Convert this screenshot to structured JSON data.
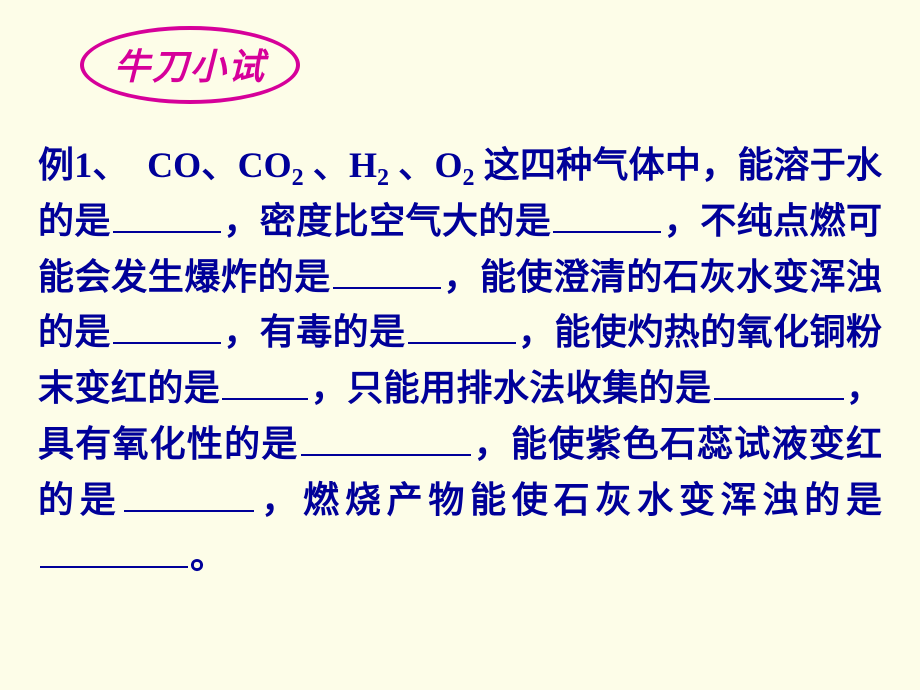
{
  "colors": {
    "slide_bg": "#fdfde8",
    "badge_text": "#d6009a",
    "badge_border": "#d6009a",
    "body_text": "#000099",
    "blank_border": "#000099"
  },
  "typography": {
    "badge_fontsize": 36,
    "body_fontsize": 36,
    "sub_fontsize": 24,
    "body_lineheight": 1.55
  },
  "badge": {
    "label": "牛刀小试"
  },
  "question": {
    "prefix": "例1、",
    "gases_intro_a": "CO、CO",
    "gases_intro_b": "、H",
    "gases_intro_c": "、O",
    "gases_intro_d": "这四种气体中，能溶于水的是",
    "sub2": "2",
    "seg2": "，密度比空气大的是",
    "seg3": "，不纯点燃可能会发生爆炸的是",
    "seg4": "，能使澄清的石灰水变浑浊的是",
    "seg5": "，有毒的是",
    "seg6": "，能使灼热的氧化铜粉末变红的是",
    "seg7": "，只能用排水法收集的是",
    "seg8": "，具有氧化性的是",
    "seg9": "，能使紫色石蕊试液变红的是",
    "seg10": "，燃烧产物能使石灰水变浑浊的是",
    "seg11": "。"
  },
  "blanks": {
    "w1": 108,
    "w2": 108,
    "w3": 108,
    "w4": 108,
    "w5": 108,
    "w6": 86,
    "w7": 130,
    "w8": 170,
    "w9": 130,
    "w10": 148
  }
}
